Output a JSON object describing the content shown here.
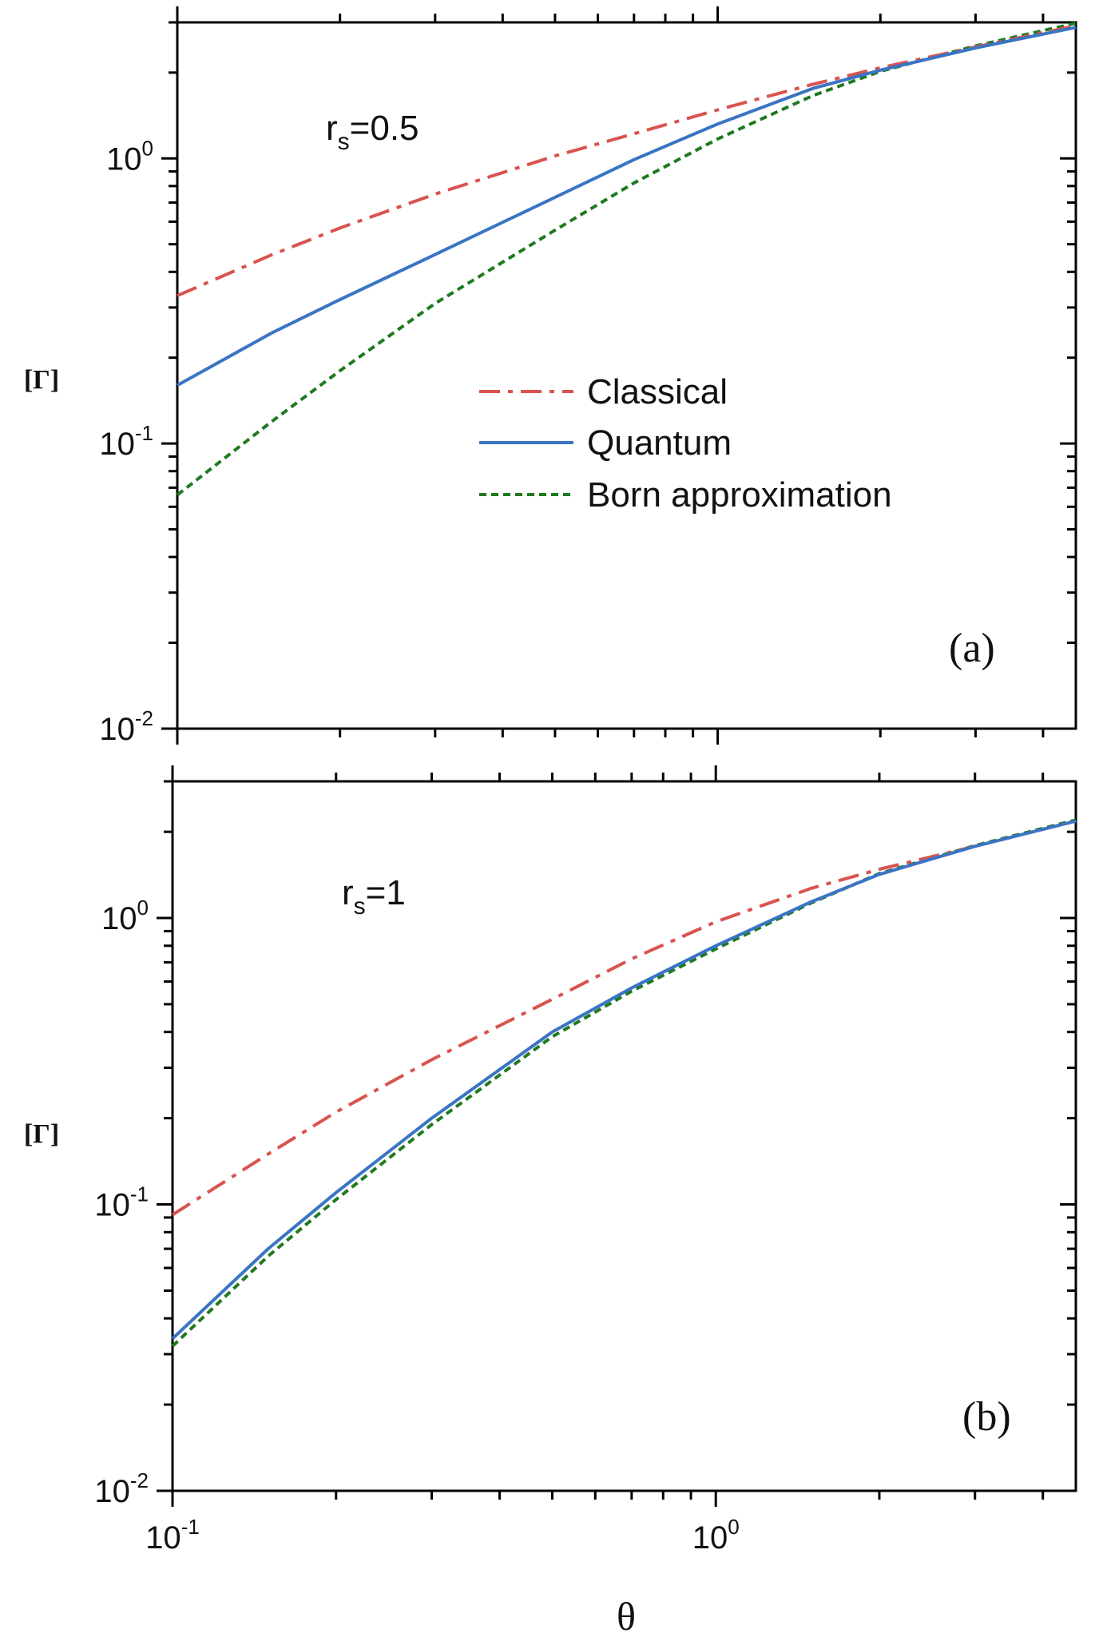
{
  "colors": {
    "classical": "#d9534f",
    "quantum": "#3a74c4",
    "born": "#1f7a1f",
    "axis": "#000000"
  },
  "figure": {
    "xlabel": "θ"
  },
  "chart_data": [
    {
      "type": "line",
      "panel_label": "(a)",
      "annotation": {
        "main": "r",
        "sub": "s",
        "tail": "=0.5"
      },
      "ylabel": "[Γ]",
      "xscale": "log",
      "yscale": "log",
      "xlim": [
        0.1,
        4.6
      ],
      "ylim": [
        0.01,
        3.0
      ],
      "yticks": [
        {
          "base": "10",
          "exp": "0",
          "value": 1.0
        },
        {
          "base": "10",
          "exp": "-1",
          "value": 0.1
        },
        {
          "base": "10",
          "exp": "-2",
          "value": 0.01
        }
      ],
      "legend": {
        "position": "center",
        "entries": [
          {
            "label": "Classical",
            "series": "classical"
          },
          {
            "label": "Quantum",
            "series": "quantum"
          },
          {
            "label": "Born approximation",
            "series": "born"
          }
        ]
      },
      "series": [
        {
          "name": "Classical",
          "key": "classical",
          "x": [
            0.1,
            0.15,
            0.2,
            0.3,
            0.5,
            0.7,
            1.0,
            1.5,
            2.0,
            3.0,
            4.6
          ],
          "y": [
            0.33,
            0.46,
            0.57,
            0.75,
            1.02,
            1.22,
            1.48,
            1.82,
            2.08,
            2.46,
            2.92
          ]
        },
        {
          "name": "Quantum",
          "key": "quantum",
          "x": [
            0.1,
            0.15,
            0.2,
            0.3,
            0.5,
            0.7,
            1.0,
            1.5,
            2.0,
            3.0,
            4.6
          ],
          "y": [
            0.16,
            0.245,
            0.32,
            0.46,
            0.73,
            0.99,
            1.32,
            1.76,
            2.04,
            2.44,
            2.88
          ]
        },
        {
          "name": "Born approximation",
          "key": "born",
          "x": [
            0.1,
            0.15,
            0.2,
            0.3,
            0.5,
            0.7,
            1.0,
            1.5,
            2.0,
            3.0,
            4.6
          ],
          "y": [
            0.066,
            0.12,
            0.18,
            0.31,
            0.56,
            0.82,
            1.17,
            1.66,
            2.02,
            2.48,
            2.98
          ]
        }
      ]
    },
    {
      "type": "line",
      "panel_label": "(b)",
      "annotation": {
        "main": "r",
        "sub": "s",
        "tail": "=1"
      },
      "ylabel": "[Γ]",
      "xscale": "log",
      "yscale": "log",
      "xlim": [
        0.1,
        4.6
      ],
      "ylim": [
        0.01,
        3.0
      ],
      "yticks": [
        {
          "base": "10",
          "exp": "0",
          "value": 1.0
        },
        {
          "base": "10",
          "exp": "-1",
          "value": 0.1
        },
        {
          "base": "10",
          "exp": "-2",
          "value": 0.01
        }
      ],
      "xticks": [
        {
          "base": "10",
          "exp": "-1",
          "value": 0.1
        },
        {
          "base": "10",
          "exp": "0",
          "value": 1.0
        }
      ],
      "series": [
        {
          "name": "Classical",
          "key": "classical",
          "x": [
            0.1,
            0.15,
            0.2,
            0.3,
            0.5,
            0.7,
            1.0,
            1.5,
            2.0,
            3.0,
            4.6
          ],
          "y": [
            0.092,
            0.15,
            0.21,
            0.32,
            0.52,
            0.72,
            0.97,
            1.27,
            1.48,
            1.78,
            2.18
          ]
        },
        {
          "name": "Quantum",
          "key": "quantum",
          "x": [
            0.1,
            0.15,
            0.2,
            0.3,
            0.5,
            0.7,
            1.0,
            1.5,
            2.0,
            3.0,
            4.6
          ],
          "y": [
            0.034,
            0.07,
            0.11,
            0.2,
            0.4,
            0.57,
            0.8,
            1.14,
            1.42,
            1.78,
            2.18
          ]
        },
        {
          "name": "Born approximation",
          "key": "born",
          "x": [
            0.1,
            0.15,
            0.2,
            0.3,
            0.5,
            0.7,
            1.0,
            1.5,
            2.0,
            3.0,
            4.6
          ],
          "y": [
            0.032,
            0.066,
            0.104,
            0.19,
            0.385,
            0.555,
            0.78,
            1.13,
            1.43,
            1.79,
            2.2
          ]
        }
      ]
    }
  ]
}
